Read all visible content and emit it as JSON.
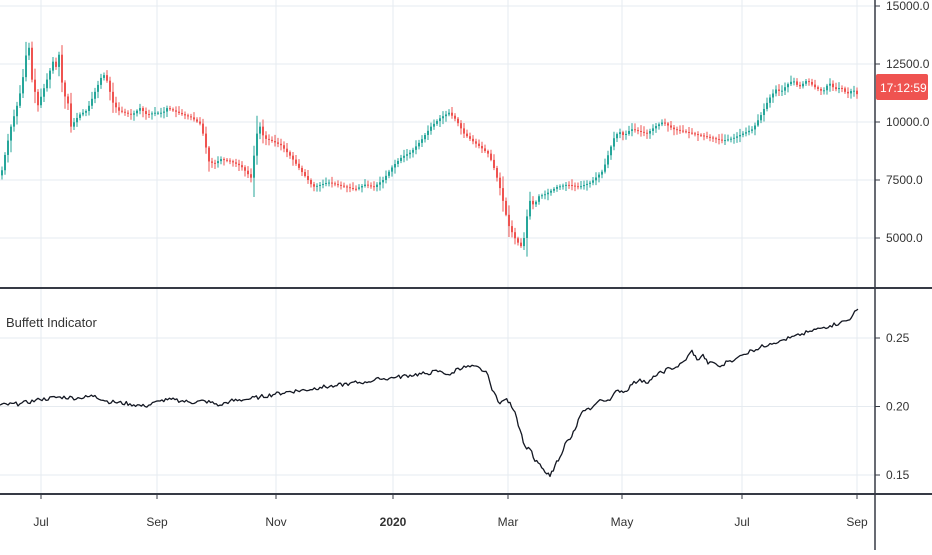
{
  "colors": {
    "background": "#ffffff",
    "grid": "#e6ebf0",
    "separator": "#363a45",
    "axis_border": "#363a45",
    "up_candle": "#26a69a",
    "down_candle": "#ef5350",
    "indicator_line": "#131722",
    "price_badge": "#ef5350"
  },
  "price_pane": {
    "price_axis_labels": [
      "15000.0",
      "12500.0",
      "10000.0",
      "7500.0",
      "5000.0"
    ],
    "current_price_badge": "17:12:59"
  },
  "indicator_pane": {
    "title": "Buffett Indicator",
    "axis_labels": [
      "0.25",
      "0.20",
      "0.15"
    ]
  },
  "time_axis": {
    "labels": [
      {
        "text": "Jul",
        "bold": false
      },
      {
        "text": "Sep",
        "bold": false
      },
      {
        "text": "Nov",
        "bold": false
      },
      {
        "text": "2020",
        "bold": true
      },
      {
        "text": "Mar",
        "bold": false
      },
      {
        "text": "May",
        "bold": false
      },
      {
        "text": "Jul",
        "bold": false
      },
      {
        "text": "Sep",
        "bold": false
      }
    ]
  },
  "chart_data": [
    {
      "type": "candlestick",
      "title": "",
      "ylim": [
        3000,
        15500
      ],
      "y_ticks": [
        5000,
        7500,
        10000,
        12500,
        15000
      ],
      "x_labels": [
        "Jul",
        "Sep",
        "Nov",
        "2020",
        "Mar",
        "May",
        "Jul",
        "Sep"
      ],
      "grid": true,
      "price_path": {
        "x": [
          0,
          5,
          10,
          18,
          24,
          27,
          30,
          34,
          36,
          45,
          52,
          56,
          58,
          62,
          67,
          70,
          78,
          86,
          95,
          102,
          107,
          111,
          117,
          124,
          131,
          139,
          146,
          153,
          162,
          166,
          172,
          183,
          190,
          200,
          208,
          213,
          220,
          230,
          240,
          250,
          256,
          259,
          263,
          270,
          280,
          290,
          300,
          307,
          312,
          320,
          327,
          336,
          345,
          354,
          364,
          373,
          382,
          392,
          401,
          410,
          420,
          430,
          440,
          448,
          455,
          463,
          471,
          480,
          488,
          494,
          500,
          507,
          515,
          521,
          524,
          527,
          529,
          533,
          538,
          545,
          556,
          566,
          578,
          590,
          602,
          608,
          613,
          618,
          623,
          630,
          638,
          646,
          654,
          662,
          672,
          682,
          692,
          702,
          712,
          722,
          732,
          742,
          752,
          760,
          768,
          775,
          780,
          786,
          792,
          798,
          806,
          814,
          822,
          828,
          834,
          840,
          846,
          852,
          858
        ],
        "values": [
          7700,
          8800,
          9800,
          11000,
          12400,
          13800,
          12000,
          11300,
          10600,
          11700,
          12600,
          12300,
          12900,
          11300,
          10800,
          9800,
          10300,
          10500,
          11400,
          12100,
          11700,
          10900,
          10500,
          10400,
          10300,
          10600,
          10300,
          10400,
          10400,
          10600,
          10500,
          10300,
          10200,
          9900,
          8300,
          8200,
          8400,
          8300,
          8100,
          7600,
          9500,
          9800,
          9300,
          9200,
          9000,
          8500,
          7900,
          7500,
          7200,
          7300,
          7400,
          7300,
          7200,
          7100,
          7300,
          7200,
          7500,
          8100,
          8500,
          8700,
          9200,
          9800,
          10200,
          10400,
          10100,
          9500,
          9200,
          8900,
          8600,
          7900,
          7000,
          5600,
          4900,
          4600,
          5200,
          6300,
          6600,
          6400,
          6800,
          6900,
          7200,
          7300,
          7200,
          7400,
          7900,
          8700,
          9300,
          9600,
          9400,
          9700,
          9600,
          9500,
          9800,
          10000,
          9700,
          9600,
          9500,
          9400,
          9300,
          9200,
          9300,
          9500,
          9700,
          10300,
          11000,
          11400,
          11300,
          11600,
          11800,
          11500,
          11800,
          11500,
          11300,
          11700,
          11400,
          11500,
          11200,
          11400,
          11100
        ]
      }
    },
    {
      "type": "line",
      "title": "Buffett Indicator",
      "ylim": [
        0.135,
        0.285
      ],
      "y_ticks": [
        0.15,
        0.2,
        0.25
      ],
      "x_labels": [
        "Jul",
        "Sep",
        "Nov",
        "2020",
        "Mar",
        "May",
        "Jul",
        "Sep"
      ],
      "grid": true,
      "series": [
        {
          "name": "Buffett Indicator",
          "x": [
            0,
            20,
            40,
            60,
            80,
            95,
            105,
            115,
            130,
            145,
            160,
            175,
            190,
            205,
            220,
            230,
            245,
            260,
            275,
            290,
            305,
            320,
            335,
            350,
            365,
            380,
            395,
            410,
            425,
            440,
            450,
            458,
            470,
            480,
            488,
            492,
            496,
            500,
            505,
            510,
            515,
            520,
            525,
            530,
            535,
            540,
            545,
            550,
            555,
            560,
            565,
            570,
            575,
            580,
            585,
            592,
            600,
            606,
            612,
            618,
            625,
            632,
            640,
            648,
            655,
            662,
            670,
            678,
            686,
            692,
            697,
            703,
            708,
            714,
            720,
            728,
            736,
            744,
            752,
            760,
            770,
            780,
            790,
            800,
            810,
            820,
            830,
            840,
            848,
            853,
            858
          ],
          "values": [
            0.201,
            0.202,
            0.205,
            0.207,
            0.206,
            0.208,
            0.204,
            0.203,
            0.202,
            0.2,
            0.204,
            0.205,
            0.203,
            0.204,
            0.201,
            0.204,
            0.205,
            0.207,
            0.209,
            0.211,
            0.212,
            0.214,
            0.215,
            0.217,
            0.218,
            0.22,
            0.221,
            0.223,
            0.224,
            0.226,
            0.223,
            0.228,
            0.229,
            0.228,
            0.223,
            0.212,
            0.208,
            0.202,
            0.205,
            0.203,
            0.196,
            0.183,
            0.171,
            0.169,
            0.16,
            0.158,
            0.152,
            0.149,
            0.157,
            0.163,
            0.173,
            0.176,
            0.183,
            0.193,
            0.197,
            0.199,
            0.205,
            0.204,
            0.207,
            0.212,
            0.211,
            0.216,
            0.22,
            0.217,
            0.222,
            0.225,
            0.228,
            0.229,
            0.234,
            0.241,
            0.234,
            0.238,
            0.231,
            0.232,
            0.229,
            0.233,
            0.235,
            0.238,
            0.241,
            0.243,
            0.246,
            0.248,
            0.25,
            0.252,
            0.255,
            0.257,
            0.259,
            0.261,
            0.263,
            0.267,
            0.271
          ]
        }
      ]
    }
  ]
}
